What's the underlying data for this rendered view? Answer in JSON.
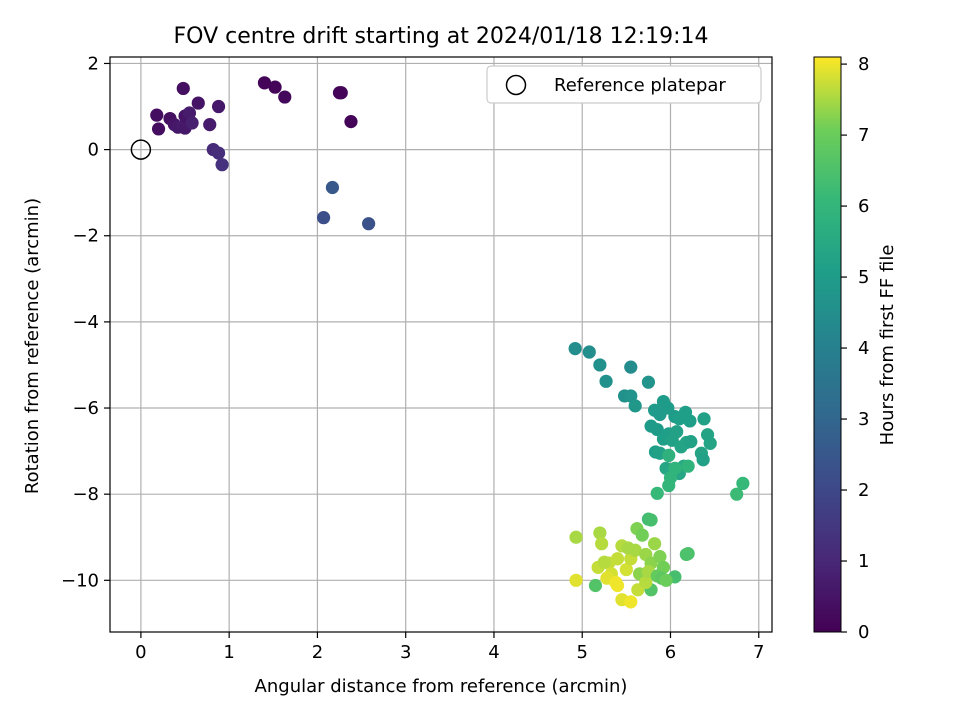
{
  "chart_data": {
    "type": "scatter",
    "title": "FOV centre drift starting at 2024/01/18 12:19:14",
    "xlabel": "Angular distance from reference (arcmin)",
    "ylabel": "Rotation from reference (arcmin)",
    "xlim": [
      -0.35,
      7.15
    ],
    "ylim": [
      -11.2,
      2.15
    ],
    "xticks": [
      0,
      1,
      2,
      3,
      4,
      5,
      6,
      7
    ],
    "yticks": [
      2,
      0,
      -2,
      -4,
      -6,
      -8,
      -10
    ],
    "grid": true,
    "legend": {
      "position": "top-right",
      "entries": [
        "Reference platepar"
      ]
    },
    "reference_point": {
      "x": 0,
      "y": 0
    },
    "colorbar": {
      "label": "Hours from first FF file",
      "colormap": "viridis",
      "range": [
        0,
        8.1
      ],
      "ticks": [
        0,
        1,
        2,
        3,
        4,
        5,
        6,
        7,
        8
      ]
    },
    "points": [
      [
        0.18,
        0.8,
        0.3
      ],
      [
        0.2,
        0.48,
        0.3
      ],
      [
        0.33,
        0.72,
        0.4
      ],
      [
        0.38,
        0.58,
        0.5
      ],
      [
        0.42,
        0.52,
        0.6
      ],
      [
        0.48,
        0.55,
        0.7
      ],
      [
        0.5,
        0.5,
        0.6
      ],
      [
        0.5,
        0.78,
        0.5
      ],
      [
        0.55,
        0.85,
        0.7
      ],
      [
        0.58,
        0.62,
        0.8
      ],
      [
        0.48,
        1.42,
        0.4
      ],
      [
        0.65,
        1.08,
        0.5
      ],
      [
        0.78,
        0.58,
        0.7
      ],
      [
        0.88,
        1.0,
        0.6
      ],
      [
        0.82,
        0.0,
        1.1
      ],
      [
        0.88,
        -0.08,
        1.2
      ],
      [
        0.92,
        -0.35,
        1.3
      ],
      [
        1.4,
        1.55,
        0.1
      ],
      [
        1.52,
        1.45,
        0.1
      ],
      [
        1.63,
        1.22,
        0.2
      ],
      [
        2.25,
        1.32,
        0.1
      ],
      [
        2.27,
        1.32,
        0.1
      ],
      [
        2.38,
        0.65,
        0.1
      ],
      [
        2.17,
        -0.88,
        2.5
      ],
      [
        2.07,
        -1.58,
        2.2
      ],
      [
        2.58,
        -1.72,
        2.3
      ],
      [
        4.92,
        -4.62,
        4.5
      ],
      [
        5.08,
        -4.7,
        4.5
      ],
      [
        5.2,
        -5.0,
        4.6
      ],
      [
        5.27,
        -5.38,
        4.6
      ],
      [
        5.55,
        -5.05,
        4.4
      ],
      [
        5.75,
        -5.4,
        4.7
      ],
      [
        5.48,
        -5.72,
        4.6
      ],
      [
        5.55,
        -5.72,
        4.7
      ],
      [
        5.6,
        -5.95,
        4.8
      ],
      [
        5.82,
        -6.05,
        4.9
      ],
      [
        5.88,
        -6.15,
        4.9
      ],
      [
        5.92,
        -5.85,
        5.0
      ],
      [
        5.97,
        -6.0,
        5.0
      ],
      [
        6.05,
        -6.2,
        5.0
      ],
      [
        6.1,
        -6.25,
        5.1
      ],
      [
        6.17,
        -6.1,
        5.1
      ],
      [
        6.22,
        -6.3,
        5.1
      ],
      [
        6.38,
        -6.25,
        5.2
      ],
      [
        5.78,
        -6.42,
        5.0
      ],
      [
        5.85,
        -6.5,
        5.0
      ],
      [
        5.92,
        -6.72,
        5.1
      ],
      [
        5.98,
        -6.6,
        5.1
      ],
      [
        6.02,
        -6.75,
        5.2
      ],
      [
        6.07,
        -6.55,
        5.2
      ],
      [
        6.12,
        -6.9,
        5.3
      ],
      [
        6.18,
        -6.8,
        5.3
      ],
      [
        6.23,
        -6.78,
        5.2
      ],
      [
        6.42,
        -6.62,
        5.3
      ],
      [
        6.45,
        -6.82,
        5.3
      ],
      [
        6.35,
        -7.05,
        5.3
      ],
      [
        6.37,
        -7.2,
        5.2
      ],
      [
        5.83,
        -7.02,
        5.1
      ],
      [
        5.88,
        -7.05,
        5.2
      ],
      [
        5.95,
        -7.4,
        5.4
      ],
      [
        6.1,
        -7.52,
        5.4
      ],
      [
        6.15,
        -7.35,
        5.5
      ],
      [
        5.98,
        -7.1,
        5.8
      ],
      [
        6.05,
        -7.4,
        5.9
      ],
      [
        6.0,
        -7.62,
        5.9
      ],
      [
        5.98,
        -7.8,
        6.0
      ],
      [
        6.2,
        -7.35,
        5.9
      ],
      [
        5.85,
        -7.98,
        6.1
      ],
      [
        6.75,
        -8.0,
        6.2
      ],
      [
        6.82,
        -7.75,
        6.1
      ],
      [
        5.75,
        -8.58,
        6.3
      ],
      [
        5.78,
        -8.6,
        6.4
      ],
      [
        6.18,
        -9.4,
        6.5
      ],
      [
        6.2,
        -9.38,
        6.5
      ],
      [
        6.05,
        -9.92,
        6.4
      ],
      [
        5.78,
        -10.22,
        6.6
      ],
      [
        5.15,
        -10.12,
        6.6
      ],
      [
        4.93,
        -9.0,
        7.5
      ],
      [
        5.2,
        -8.9,
        7.5
      ],
      [
        5.22,
        -9.15,
        7.6
      ],
      [
        5.3,
        -9.6,
        7.7
      ],
      [
        5.4,
        -9.5,
        7.7
      ],
      [
        5.45,
        -9.2,
        7.6
      ],
      [
        5.5,
        -9.75,
        7.8
      ],
      [
        5.55,
        -9.5,
        7.7
      ],
      [
        5.6,
        -9.3,
        7.5
      ],
      [
        5.65,
        -9.85,
        7.3
      ],
      [
        5.72,
        -9.4,
        7.4
      ],
      [
        5.78,
        -9.6,
        7.3
      ],
      [
        5.82,
        -9.15,
        7.4
      ],
      [
        5.88,
        -9.45,
        7.2
      ],
      [
        5.92,
        -9.7,
        7.1
      ],
      [
        5.62,
        -8.8,
        7.2
      ],
      [
        5.68,
        -8.95,
        7.1
      ],
      [
        5.33,
        -9.85,
        7.8
      ],
      [
        5.28,
        -9.95,
        7.9
      ],
      [
        5.18,
        -9.7,
        7.7
      ],
      [
        5.4,
        -10.12,
        8.0
      ],
      [
        5.45,
        -10.45,
        7.9
      ],
      [
        5.55,
        -10.5,
        8.0
      ],
      [
        5.63,
        -10.22,
        7.7
      ],
      [
        5.72,
        -10.05,
        7.6
      ],
      [
        4.93,
        -10.0,
        7.9
      ],
      [
        5.75,
        -9.8,
        7.5
      ],
      [
        5.85,
        -9.9,
        6.9
      ],
      [
        5.9,
        -9.95,
        6.8
      ],
      [
        5.38,
        -10.05,
        8.0
      ],
      [
        5.25,
        -9.58,
        7.6
      ],
      [
        5.52,
        -9.25,
        7.5
      ],
      [
        5.95,
        -10.0,
        7.0
      ]
    ]
  }
}
